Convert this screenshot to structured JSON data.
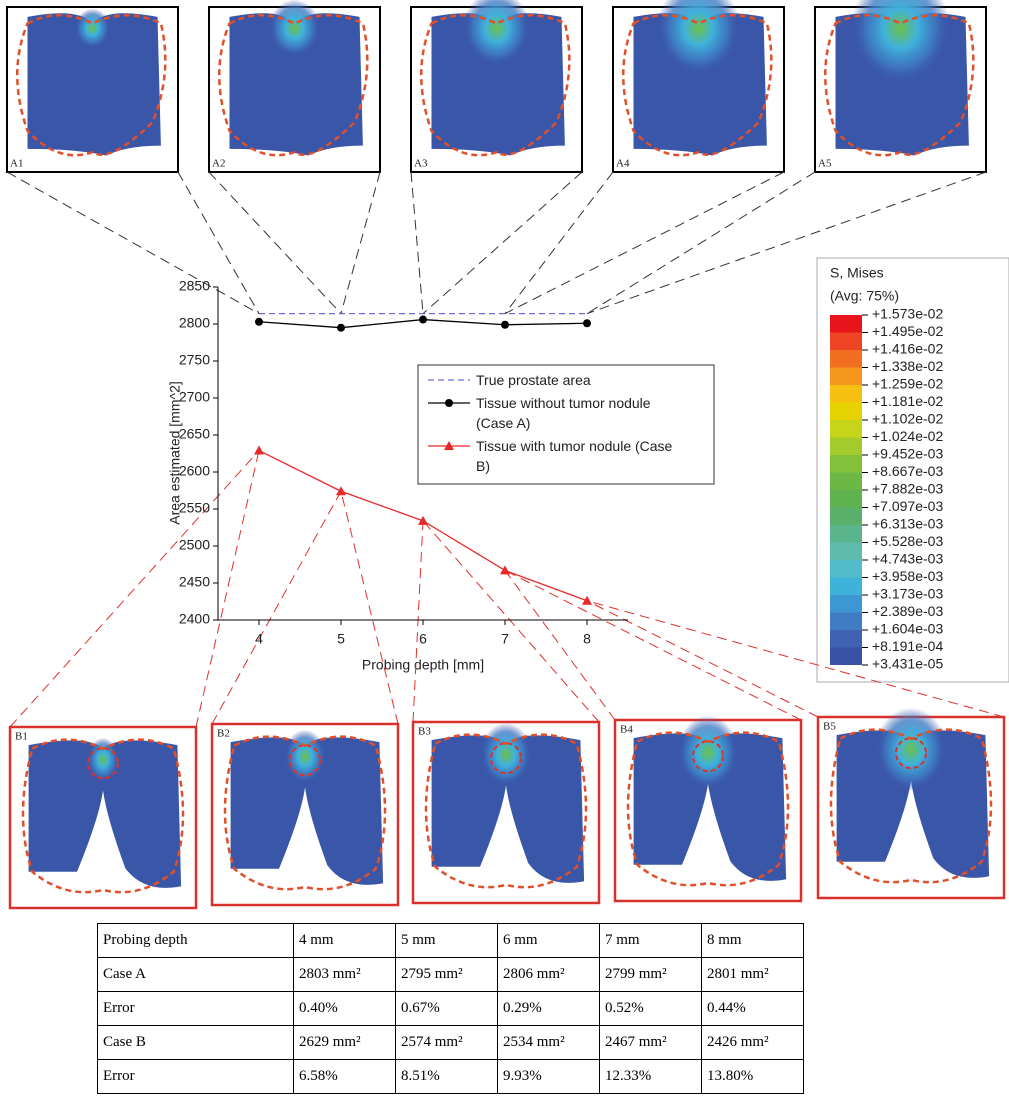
{
  "chart_data": {
    "type": "line",
    "xlabel": "Probing depth [mm]",
    "ylabel": "Area estimated [mm^2]",
    "x": [
      4,
      5,
      6,
      7,
      8
    ],
    "xlim": [
      3.5,
      8.5
    ],
    "xticks": [
      4,
      5,
      6,
      7,
      8
    ],
    "ylim": [
      2400,
      2850
    ],
    "yticks": [
      2400,
      2450,
      2500,
      2550,
      2600,
      2650,
      2700,
      2750,
      2800,
      2850
    ],
    "series": [
      {
        "name": "True prostate area",
        "color": "#6a6ad8",
        "style": "dashed",
        "values": [
          2814,
          2814,
          2814,
          2814,
          2814
        ]
      },
      {
        "name": "Tissue without tumor nodule (Case A)",
        "color": "#000000",
        "marker": "circle",
        "values": [
          2803,
          2795,
          2806,
          2799,
          2801
        ]
      },
      {
        "name": "Tissue with tumor nodule (Case B)",
        "color": "#e8282b",
        "marker": "triangle",
        "values": [
          2629,
          2574,
          2534,
          2467,
          2426
        ]
      }
    ]
  },
  "colorbar": {
    "title": "S, Mises",
    "subtitle": "(Avg: 75%)",
    "labels": [
      "+1.573e-02",
      "+1.495e-02",
      "+1.416e-02",
      "+1.338e-02",
      "+1.259e-02",
      "+1.181e-02",
      "+1.102e-02",
      "+1.024e-02",
      "+9.452e-03",
      "+8.667e-03",
      "+7.882e-03",
      "+7.097e-03",
      "+6.313e-03",
      "+5.528e-03",
      "+4.743e-03",
      "+3.958e-03",
      "+3.173e-03",
      "+2.389e-03",
      "+1.604e-03",
      "+8.191e-04",
      "+3.431e-05"
    ],
    "colors": [
      "#e8141c",
      "#ee4423",
      "#f26f22",
      "#f5961d",
      "#f7c010",
      "#e6d200",
      "#c6d41a",
      "#a4cb2c",
      "#84c13b",
      "#6cb845",
      "#5eb34e",
      "#58b06a",
      "#5ab48c",
      "#5fbcad",
      "#52bccb",
      "#3fb2dc",
      "#3c97d2",
      "#3f7cc4",
      "#3f62b2",
      "#3a52a6"
    ]
  },
  "panels_a": [
    "A1",
    "A2",
    "A3",
    "A4",
    "A5"
  ],
  "panels_b": [
    "B1",
    "B2",
    "B3",
    "B4",
    "B5"
  ],
  "table": {
    "rows": [
      [
        "Probing depth",
        "4 mm",
        "5 mm",
        "6 mm",
        "7 mm",
        "8 mm"
      ],
      [
        "Case A",
        "2803 mm²",
        "2795 mm²",
        "2806 mm²",
        "2799 mm²",
        "2801 mm²"
      ],
      [
        "Error",
        "0.40%",
        "0.67%",
        "0.29%",
        "0.52%",
        "0.44%"
      ],
      [
        "Case B",
        "2629 mm²",
        "2574 mm²",
        "2534 mm²",
        "2467 mm²",
        "2426 mm²"
      ],
      [
        "Error",
        "6.58%",
        "8.51%",
        "9.93%",
        "12.33%",
        "13.80%"
      ]
    ]
  }
}
